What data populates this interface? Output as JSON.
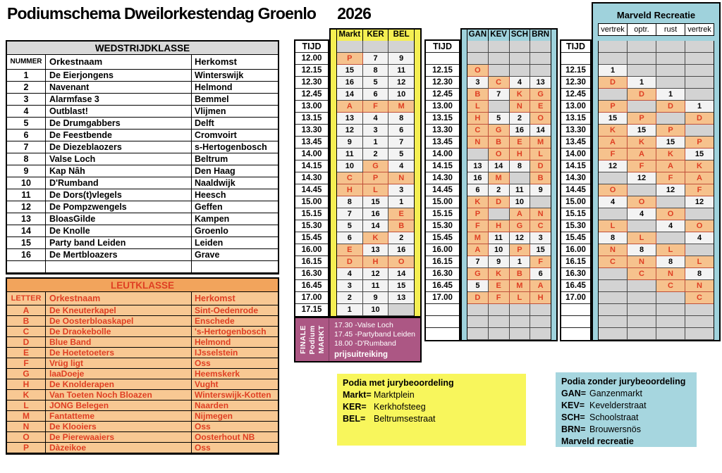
{
  "title": "Podiumschema Dweilorkestendag Groenlo",
  "year": "2026",
  "colors": {
    "gray1": "#D9D9D9",
    "light": "#F3F3F3",
    "gray2": "#D3D3D3",
    "orange": "#F6C28D",
    "red": "#DF3F23",
    "yellow": "#F5EF52",
    "yellow2": "#F8F65C",
    "blue": "#9FD2DC",
    "blue2": "#A6D6DF",
    "purple": "#AC5784",
    "leuthead": "#F2A45C",
    "leutrow": "#F8C893"
  },
  "wedstrijdklasse": {
    "title": "WEDSTRIJDKLASSE",
    "headers": [
      "NUMMER",
      "Orkestnaam",
      "Herkomst"
    ],
    "rows": [
      [
        "1",
        "De Eierjongens",
        "Winterswijk"
      ],
      [
        "2",
        "Navenant",
        "Helmond"
      ],
      [
        "3",
        "Alarmfase 3",
        "Bemmel"
      ],
      [
        "4",
        "Outblast!",
        "Vlijmen"
      ],
      [
        "5",
        "De Drumgabbers",
        "Delft"
      ],
      [
        "6",
        "De Feestbende",
        "Cromvoirt"
      ],
      [
        "7",
        "De Diezeblaozers",
        "s-Hertogenbosch"
      ],
      [
        "8",
        "Valse Loch",
        "Beltrum"
      ],
      [
        "9",
        "Kap Nâh",
        "Den Haag"
      ],
      [
        "10",
        "D'Rumband",
        "Naaldwijk"
      ],
      [
        "11",
        "De Dors(t)vlegels",
        "Heesch"
      ],
      [
        "12",
        "De Pompzwengels",
        "Geffen"
      ],
      [
        "13",
        "BloasGilde",
        "Kampen"
      ],
      [
        "14",
        "De Knolle",
        "Groenlo"
      ],
      [
        "15",
        "Party band Leiden",
        "Leiden"
      ],
      [
        "16",
        "De Mertbloazers",
        "Grave"
      ],
      [
        "",
        "",
        ""
      ]
    ]
  },
  "leutklasse": {
    "title": "LEUTKLASSE",
    "headers": [
      "LETTER",
      "Orkestnaam",
      "Herkomst"
    ],
    "rows": [
      [
        "A",
        "De Kneuterkapel",
        "Sint-Oedenrode"
      ],
      [
        "B",
        "De Oosterbloaskapel",
        "Enschede"
      ],
      [
        "C",
        "De Draokebolle",
        "'s-Hertogenbosch"
      ],
      [
        "D",
        "Blue Band",
        "Helmond"
      ],
      [
        "E",
        "De Hoetetoeters",
        "IJsselstein"
      ],
      [
        "F",
        "Vrüg ligt",
        "Oss"
      ],
      [
        "G",
        "laaDoeje",
        "Heemskerk"
      ],
      [
        "H",
        "De Knolderapen",
        "Vught"
      ],
      [
        "K",
        "Van Toeten Noch Bloazen",
        "Winterswijk-Kotten"
      ],
      [
        "L",
        "JONG Belegen",
        "Naarden"
      ],
      [
        "M",
        "Fantatteme",
        "Nijmegen"
      ],
      [
        "N",
        "De Klooiers",
        "Oss"
      ],
      [
        "O",
        "De Pierewaaiers",
        "Oosterhout NB"
      ],
      [
        "P",
        "Dàzeikoe",
        "Oss"
      ]
    ]
  },
  "schedule": {
    "tijd_label": "TIJD",
    "times_col1": [
      "12.00",
      "12.15",
      "12.30",
      "12.45",
      "13.00",
      "13.15",
      "13.30",
      "13.45",
      "14.00",
      "14.15",
      "14.30",
      "14.45",
      "15.00",
      "15.15",
      "15.30",
      "15.45",
      "16.00",
      "16.15",
      "16.30",
      "16.45",
      "17.00",
      "17.15"
    ],
    "times_col2": [
      "",
      "12.15",
      "12.30",
      "12.45",
      "13.00",
      "13.15",
      "13.30",
      "13.45",
      "14.00",
      "14.15",
      "14.30",
      "14.45",
      "15.00",
      "15.15",
      "15.30",
      "15.45",
      "16.00",
      "16.15",
      "16.30",
      "16.45",
      "17.00",
      "",
      "",
      ""
    ],
    "times_col3": [
      "",
      "12.15",
      "12.30",
      "12.45",
      "13.00",
      "13.15",
      "13.30",
      "13.45",
      "14.00",
      "14.15",
      "14.30",
      "14.45",
      "15.00",
      "15.15",
      "15.30",
      "15.45",
      "16.00",
      "16.15",
      "16.30",
      "16.45",
      "17.00",
      "",
      "",
      ""
    ],
    "stage1": {
      "headers": [
        "Markt",
        "KER",
        "BEL"
      ],
      "rows": [
        [
          "",
          "",
          ""
        ],
        [
          "P",
          "7",
          "9"
        ],
        [
          "15",
          "8",
          "11"
        ],
        [
          "16",
          "5",
          "12"
        ],
        [
          "14",
          "6",
          "10"
        ],
        [
          "A",
          "F",
          "M"
        ],
        [
          "13",
          "4",
          "8"
        ],
        [
          "12",
          "3",
          "6"
        ],
        [
          "9",
          "1",
          "7"
        ],
        [
          "11",
          "2",
          "5"
        ],
        [
          "10",
          "G",
          "4"
        ],
        [
          "C",
          "P",
          "N"
        ],
        [
          "H",
          "L",
          "3"
        ],
        [
          "8",
          "15",
          "1"
        ],
        [
          "7",
          "16",
          "E"
        ],
        [
          "5",
          "14",
          "B"
        ],
        [
          "6",
          "K",
          "2"
        ],
        [
          "E",
          "13",
          "16"
        ],
        [
          "D",
          "H",
          "O"
        ],
        [
          "4",
          "12",
          "14"
        ],
        [
          "3",
          "11",
          "15"
        ],
        [
          "2",
          "9",
          "13"
        ],
        [
          "1",
          "10",
          ""
        ]
      ]
    },
    "stage2": {
      "headers": [
        "GAN",
        "KEV",
        "SCH",
        "BRN"
      ],
      "rows": [
        [
          "",
          "",
          "",
          ""
        ],
        [
          "",
          "",
          "",
          ""
        ],
        [
          "O",
          "",
          "",
          ""
        ],
        [
          "3",
          "C",
          "4",
          "13"
        ],
        [
          "B",
          "7",
          "K",
          "G"
        ],
        [
          "L",
          "",
          "N",
          "E"
        ],
        [
          "H",
          "5",
          "2",
          "O"
        ],
        [
          "C",
          "G",
          "16",
          "14"
        ],
        [
          "N",
          "B",
          "E",
          "M"
        ],
        [
          "",
          "O",
          "H",
          "L"
        ],
        [
          "13",
          "14",
          "8",
          "D"
        ],
        [
          "16",
          "M",
          "",
          "B"
        ],
        [
          "6",
          "2",
          "11",
          "9"
        ],
        [
          "K",
          "D",
          "10",
          ""
        ],
        [
          "P",
          "",
          "A",
          "N"
        ],
        [
          "F",
          "H",
          "G",
          "C"
        ],
        [
          "M",
          "11",
          "12",
          "3"
        ],
        [
          "A",
          "10",
          "P",
          "15"
        ],
        [
          "7",
          "9",
          "1",
          "F"
        ],
        [
          "G",
          "K",
          "B",
          "6"
        ],
        [
          "5",
          "E",
          "M",
          "A"
        ],
        [
          "D",
          "F",
          "L",
          "H"
        ],
        [
          "",
          "",
          "",
          ""
        ],
        [
          "",
          "",
          "",
          ""
        ],
        [
          "",
          "",
          "",
          ""
        ]
      ]
    },
    "marveld": {
      "title": "Marveld Recreatie",
      "headers": [
        "vertrek",
        "optr.",
        "rust",
        "vertrek"
      ],
      "rows": [
        [
          "",
          "",
          "",
          ""
        ],
        [
          "",
          "",
          "",
          ""
        ],
        [
          "1",
          "",
          "",
          ""
        ],
        [
          "D",
          "1",
          "",
          ""
        ],
        [
          "",
          "D",
          "1",
          ""
        ],
        [
          "P",
          "",
          "D",
          "1"
        ],
        [
          "15",
          "P",
          "",
          "D"
        ],
        [
          "K",
          "15",
          "P",
          ""
        ],
        [
          "A",
          "K",
          "15",
          "P"
        ],
        [
          "F",
          "A",
          "K",
          "15"
        ],
        [
          "12",
          "F",
          "A",
          "K"
        ],
        [
          "",
          "12",
          "F",
          "A"
        ],
        [
          "O",
          "",
          "12",
          "F"
        ],
        [
          "4",
          "O",
          "",
          "12"
        ],
        [
          "",
          "4",
          "O",
          ""
        ],
        [
          "L",
          "",
          "4",
          "O"
        ],
        [
          "8",
          "L",
          "",
          "4"
        ],
        [
          "N",
          "8",
          "L",
          ""
        ],
        [
          "C",
          "N",
          "8",
          "L"
        ],
        [
          "",
          "C",
          "N",
          "8"
        ],
        [
          "",
          "",
          "C",
          "N"
        ],
        [
          "",
          "",
          "",
          "C"
        ],
        [
          "",
          "",
          "",
          ""
        ],
        [
          "",
          "",
          "",
          ""
        ],
        [
          "",
          "",
          "",
          ""
        ]
      ]
    }
  },
  "finale": {
    "label_words": [
      "FINALE",
      "Podium",
      "MARKT"
    ],
    "items": [
      "17.30 -Valse Loch",
      "17.45 -Partyband Leiden",
      "18.00 -D'Rumband"
    ],
    "footer": "prijsuitreiking"
  },
  "legend_jury": {
    "title": "Podia met jurybeoordeling",
    "entries": [
      [
        "Markt=",
        "Marktplein"
      ],
      [
        "KER=",
        "Kerkhofsteeg"
      ],
      [
        "BEL=",
        "Beltrumsestraat"
      ]
    ]
  },
  "legend_nojury": {
    "title": "Podia zonder jurybeoordeling",
    "entries": [
      [
        "GAN=",
        "Ganzenmarkt"
      ],
      [
        "KEV=",
        "Kevelderstraat"
      ],
      [
        "SCH=",
        "Schoolstraat"
      ],
      [
        "BRN=",
        "Brouwersnös"
      ]
    ],
    "footer": "Marveld recreatie"
  }
}
